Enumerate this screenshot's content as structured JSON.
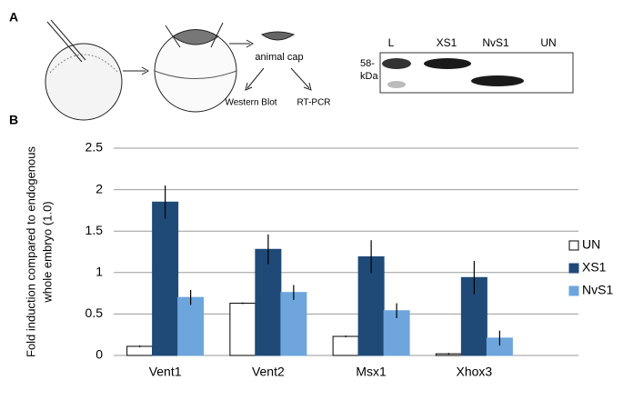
{
  "panel_labels": [
    "A",
    "B"
  ],
  "diagram": {
    "animal_cap": "animal cap",
    "western_blot": "Western Blot",
    "rt_pcr": "RT-PCR"
  },
  "blot": {
    "lanes": [
      "L",
      "XS1",
      "NvS1",
      "UN"
    ],
    "marker": [
      "58-",
      "kDa"
    ]
  },
  "chart_data": {
    "type": "bar",
    "ylabel": [
      "Fold induction compared to endogenous",
      "whole embryo (1.0)"
    ],
    "categories": [
      "Vent1",
      "Vent2",
      "Msx1",
      "Xhox3"
    ],
    "series": [
      {
        "name": "UN",
        "color": "#ffffff",
        "values": [
          0.11,
          0.63,
          0.23,
          0.02
        ],
        "errors": [
          0.01,
          0.01,
          0.01,
          0.01
        ]
      },
      {
        "name": "XS1",
        "color": "#1f4a78",
        "values": [
          1.85,
          1.28,
          1.19,
          0.94
        ],
        "errors": [
          0.2,
          0.18,
          0.2,
          0.2
        ]
      },
      {
        "name": "NvS1",
        "color": "#6ea5dc",
        "values": [
          0.7,
          0.76,
          0.54,
          0.21
        ],
        "errors": [
          0.09,
          0.09,
          0.09,
          0.09
        ]
      }
    ],
    "ylim": [
      0,
      2.5
    ],
    "yticks": [
      0,
      0.5,
      1,
      1.5,
      2,
      2.5
    ],
    "grid": true,
    "legend": "right"
  }
}
